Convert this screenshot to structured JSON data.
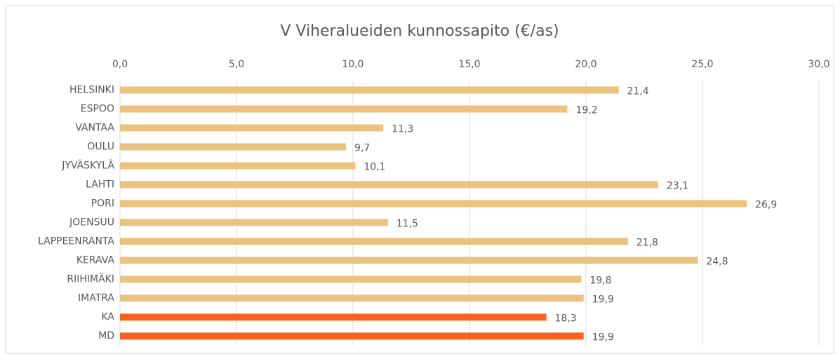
{
  "chart_data": {
    "type": "bar",
    "orientation": "horizontal",
    "title": "V Viheralueiden kunnossapito (€/as)",
    "categories": [
      "HELSINKI",
      "ESPOO",
      "VANTAA",
      "OULU",
      "JYVÄSKYLÄ",
      "LAHTI",
      "PORI",
      "JOENSUU",
      "LAPPEENRANTA",
      "KERAVA",
      "RIIHIMÄKI",
      "IMATRA",
      "KA",
      "MD"
    ],
    "values": [
      21.4,
      19.2,
      11.3,
      9.7,
      10.1,
      23.1,
      26.9,
      11.5,
      21.8,
      24.8,
      19.8,
      19.9,
      18.3,
      19.9
    ],
    "value_labels": [
      "21,4",
      "19,2",
      "11,3",
      "9,7",
      "10,1",
      "23,1",
      "26,9",
      "11,5",
      "21,8",
      "24,8",
      "19,8",
      "19,9",
      "18,3",
      "19,9"
    ],
    "colors": [
      "#ebc27e",
      "#ebc27e",
      "#ebc27e",
      "#ebc27e",
      "#ebc27e",
      "#ebc27e",
      "#ebc27e",
      "#ebc27e",
      "#ebc27e",
      "#ebc27e",
      "#ebc27e",
      "#ebc27e",
      "#f7621f",
      "#f7621f"
    ],
    "xlim": [
      0,
      30
    ],
    "xticks": [
      {
        "value": 0,
        "label": "0,0"
      },
      {
        "value": 5,
        "label": "5,0"
      },
      {
        "value": 10,
        "label": "10,0"
      },
      {
        "value": 15,
        "label": "15,0"
      },
      {
        "value": 20,
        "label": "20,0"
      },
      {
        "value": 25,
        "label": "25,0"
      },
      {
        "value": 30,
        "label": "30,0"
      }
    ],
    "grid": true
  }
}
